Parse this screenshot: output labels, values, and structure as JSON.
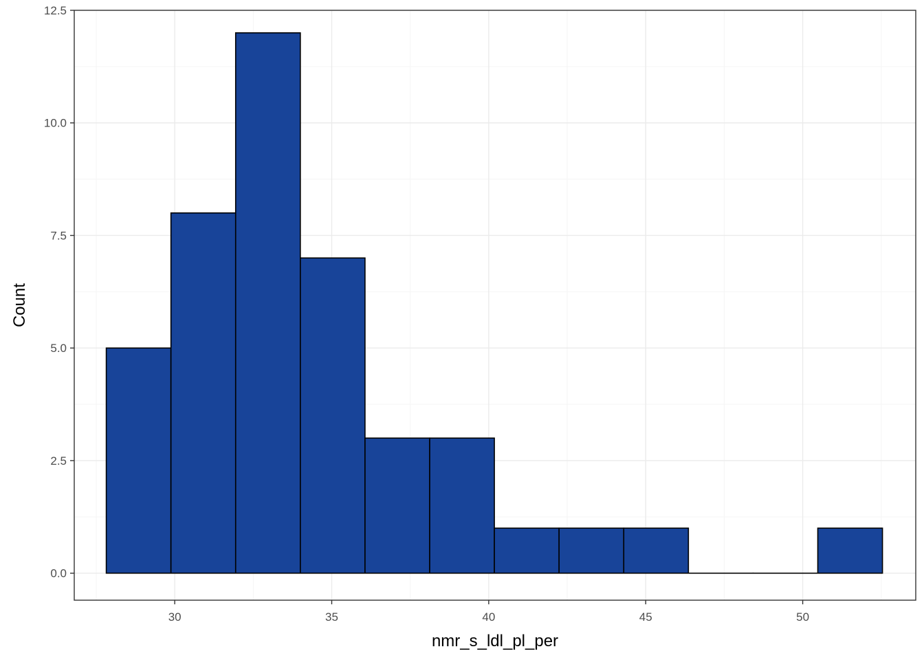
{
  "chart_data": {
    "type": "bar",
    "subtype": "histogram",
    "title": "",
    "xlabel": "nmr_s_ldl_pl_per",
    "ylabel": "Count",
    "xlim": [
      26.8,
      53.6
    ],
    "ylim": [
      -0.6,
      12.5
    ],
    "x_ticks": [
      30,
      35,
      40,
      45,
      50
    ],
    "y_ticks": [
      0.0,
      2.5,
      5.0,
      7.5,
      10.0,
      12.5
    ],
    "x_tick_labels": [
      "30",
      "35",
      "40",
      "45",
      "50"
    ],
    "y_tick_labels": [
      "0.0",
      "2.5",
      "5.0",
      "7.5",
      "10.0",
      "12.5"
    ],
    "grid": true,
    "bins": [
      {
        "x0": 27.82,
        "x1": 29.88,
        "count": 5
      },
      {
        "x0": 29.88,
        "x1": 31.94,
        "count": 8
      },
      {
        "x0": 31.94,
        "x1": 34.0,
        "count": 12
      },
      {
        "x0": 34.0,
        "x1": 36.06,
        "count": 7
      },
      {
        "x0": 36.06,
        "x1": 38.12,
        "count": 3
      },
      {
        "x0": 38.12,
        "x1": 40.18,
        "count": 3
      },
      {
        "x0": 40.18,
        "x1": 42.24,
        "count": 1
      },
      {
        "x0": 42.24,
        "x1": 44.3,
        "count": 1
      },
      {
        "x0": 44.3,
        "x1": 46.36,
        "count": 1
      },
      {
        "x0": 46.36,
        "x1": 48.42,
        "count": 0
      },
      {
        "x0": 48.42,
        "x1": 50.48,
        "count": 0
      },
      {
        "x0": 50.48,
        "x1": 52.54,
        "count": 1
      }
    ],
    "colors": {
      "bar_fill": "#184499",
      "bar_stroke": "#000000",
      "grid_major": "#ebebeb",
      "grid_minor": "#f5f5f5",
      "panel_border": "#333333"
    }
  }
}
